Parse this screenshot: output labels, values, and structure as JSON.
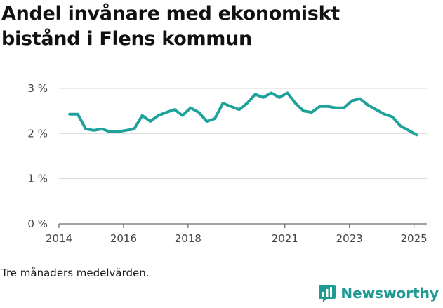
{
  "title_lines": [
    "Andel invånare med ekonomiskt",
    "bistånd i Flens kommun"
  ],
  "note": "Tre månaders medelvärden.",
  "brand": {
    "name": "Newsworthy",
    "icon": "newsworthy-logo-icon",
    "color": "#1f9b94"
  },
  "chart_data": {
    "type": "line",
    "title": "Andel invånare med ekonomiskt bistånd i Flens kommun",
    "xlabel": "",
    "ylabel": "",
    "ylim": [
      0,
      3
    ],
    "yticks": [
      0,
      1,
      2,
      3
    ],
    "ytick_labels": [
      "0 %",
      "1 %",
      "2 %",
      "3 %"
    ],
    "xlim": [
      2014.0,
      2025.4
    ],
    "xticks": [
      2014,
      2016,
      2018,
      2021,
      2023,
      2025
    ],
    "xtick_labels": [
      "2014",
      "2016",
      "2018",
      "2021",
      "2023",
      "2025"
    ],
    "grid": true,
    "line_color": "#1fa29a",
    "series": [
      {
        "x": [
          2014.33,
          2014.58,
          2014.83,
          2015.08,
          2015.33,
          2015.58,
          2015.83,
          2016.08,
          2016.33,
          2016.58,
          2016.83,
          2017.08,
          2017.33,
          2017.58,
          2017.83,
          2018.08,
          2018.33,
          2018.58,
          2018.83,
          2019.08,
          2019.33,
          2019.58,
          2019.83,
          2020.08,
          2020.33,
          2020.58,
          2020.83,
          2021.08,
          2021.33,
          2021.58,
          2021.83,
          2022.08,
          2022.33,
          2022.58,
          2022.83,
          2023.08,
          2023.33,
          2023.58,
          2023.83,
          2024.08,
          2024.33,
          2024.58,
          2024.83,
          2025.08
        ],
        "y": [
          2.43,
          2.43,
          2.1,
          2.07,
          2.1,
          2.04,
          2.04,
          2.07,
          2.1,
          2.4,
          2.27,
          2.4,
          2.47,
          2.53,
          2.4,
          2.57,
          2.47,
          2.27,
          2.33,
          2.67,
          2.6,
          2.53,
          2.67,
          2.87,
          2.8,
          2.9,
          2.8,
          2.9,
          2.67,
          2.5,
          2.47,
          2.6,
          2.6,
          2.57,
          2.57,
          2.73,
          2.77,
          2.63,
          2.53,
          2.43,
          2.37,
          2.17,
          2.07,
          1.97
        ]
      }
    ]
  }
}
